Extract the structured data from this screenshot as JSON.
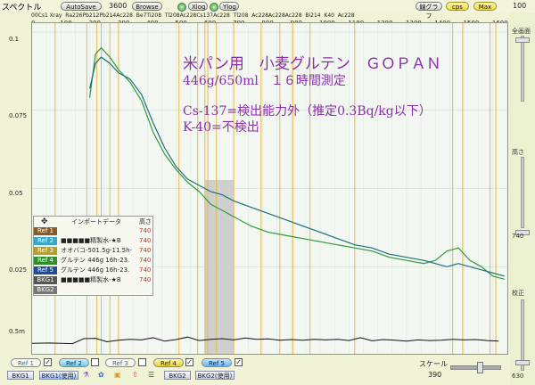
{
  "toolbar": {
    "title": "スペクトル",
    "autosave": "AutoSave",
    "time": "3600",
    "browse": "Browse",
    "xlog": "Xlog",
    "ylog": "Ylog",
    "line_graph": "線グラフ",
    "cps": "cps",
    "max": "Max",
    "right_top": "100"
  },
  "x_ticks": [
    "0",
    "100",
    "200",
    "300",
    "400",
    "500",
    "600",
    "700",
    "800",
    "900",
    "1000",
    "1100",
    "1200",
    "1300",
    "1400",
    "1500",
    "1600"
  ],
  "isotopes": "00Cs1 Xray  Ra226Pb212Pb214Ac228  Be7Ti208  Tl208Ac228Cs137Ac228  Tl208  Ac228Ac228Ac228  Bi214  K40  Ac228",
  "y_ticks": [
    "0.1",
    "0.075",
    "0.05",
    "0.025",
    "0.5m"
  ],
  "annotation": {
    "line1": "米パン用　小麦グルテン　ＧＯＰＡＮ",
    "line2": "446g/650ml　１６時間測定",
    "line3": "Cs-137=検出能力外（推定0.3Bq/kg以下）",
    "line4": "K-40=不検出"
  },
  "legend": {
    "header_name": "インポートデータ",
    "header_height": "高さ",
    "rows": [
      {
        "tag": "Ref 1",
        "text": "",
        "height": "740",
        "color": "#8b5a2b"
      },
      {
        "tag": "Ref 2",
        "text": "■■■■■精製水-★B",
        "height": "740",
        "color": "#3aa6c8"
      },
      {
        "tag": "Ref 3",
        "text": "オオバコ-501.5g-11.5h-",
        "height": "740",
        "color": "#b7a020"
      },
      {
        "tag": "Ref 4",
        "text": "グルテン 446g 16h-23.",
        "height": "740",
        "color": "#2f8f2f"
      },
      {
        "tag": "Ref 5",
        "text": "グルテン 446g 16h-23.",
        "height": "740",
        "color": "#1e4f9a"
      },
      {
        "tag": "BKG1",
        "text": "■■■■■精製水-★B",
        "height": "740",
        "color": "#555555"
      },
      {
        "tag": "BKG2",
        "text": "",
        "height": "",
        "color": "#777777"
      }
    ]
  },
  "right_panel": {
    "full_scale": "全画面",
    "height": "高さ",
    "height_value": "740",
    "calibration": "校正",
    "calibration_value": "630"
  },
  "bottom": {
    "ref1": "Ref 1",
    "ref2": "Ref 2",
    "ref3": "Ref 3",
    "ref4": "Ref 4",
    "ref5": "Ref 5",
    "bkg1": "BKG1",
    "bkg1_used": "BKG1(使用)",
    "bkg2": "BKG2",
    "bkg2_used": "BKG2(使用)",
    "scale_label": "スケール",
    "scale_value": "390"
  },
  "chart_data": {
    "type": "line",
    "xlim": [
      0,
      1650
    ],
    "ylim": [
      0,
      0.1
    ],
    "series": [
      {
        "name": "Ref 4",
        "color": "#2f9a3c",
        "x": [
          200,
          220,
          240,
          270,
          300,
          340,
          380,
          420,
          460,
          500,
          540,
          580,
          620,
          660,
          700,
          760,
          820,
          880,
          940,
          1000,
          1060,
          1120,
          1180,
          1240,
          1300,
          1360,
          1400,
          1440,
          1480,
          1520,
          1560,
          1600,
          1640
        ],
        "y": [
          0.079,
          0.093,
          0.095,
          0.092,
          0.088,
          0.084,
          0.078,
          0.068,
          0.061,
          0.056,
          0.052,
          0.049,
          0.045,
          0.043,
          0.041,
          0.038,
          0.036,
          0.035,
          0.034,
          0.033,
          0.032,
          0.031,
          0.03,
          0.028,
          0.027,
          0.026,
          0.027,
          0.03,
          0.031,
          0.027,
          0.025,
          0.022,
          0.021
        ]
      },
      {
        "name": "Ref 5",
        "color": "#1e6f7a",
        "x": [
          200,
          220,
          240,
          270,
          300,
          340,
          380,
          420,
          460,
          500,
          540,
          580,
          620,
          660,
          700,
          760,
          820,
          880,
          940,
          1000,
          1060,
          1120,
          1180,
          1240,
          1300,
          1360,
          1400,
          1440,
          1480,
          1520,
          1560,
          1600,
          1640
        ],
        "y": [
          0.082,
          0.09,
          0.092,
          0.09,
          0.087,
          0.085,
          0.08,
          0.071,
          0.063,
          0.057,
          0.053,
          0.051,
          0.049,
          0.048,
          0.046,
          0.044,
          0.042,
          0.04,
          0.038,
          0.036,
          0.034,
          0.032,
          0.031,
          0.029,
          0.028,
          0.027,
          0.026,
          0.025,
          0.026,
          0.025,
          0.024,
          0.023,
          0.022
        ]
      },
      {
        "name": "BKG1",
        "color": "#111111",
        "x": [
          0,
          60,
          100,
          140,
          180,
          220,
          260,
          300,
          340,
          380,
          420,
          460,
          500,
          540,
          580,
          620,
          660,
          700,
          740,
          780,
          820,
          860,
          900,
          940,
          980,
          1020,
          1060,
          1100,
          1140,
          1180,
          1220,
          1260,
          1300,
          1340,
          1380,
          1420,
          1460,
          1500,
          1540,
          1580,
          1620
        ],
        "y": [
          0.0005,
          0.0006,
          0.0005,
          0.0004,
          0.002,
          0.0021,
          0.001,
          0.0015,
          0.0018,
          0.0016,
          0.0023,
          0.0012,
          0.0017,
          0.0025,
          0.0014,
          0.0018,
          0.002,
          0.0016,
          0.0022,
          0.0018,
          0.0019,
          0.0015,
          0.0017,
          0.0015,
          0.0018,
          0.0016,
          0.0018,
          0.0014,
          0.0023,
          0.0013,
          0.0017,
          0.0015,
          0.0012,
          0.0016,
          0.0014,
          0.0015,
          0.0018,
          0.0016,
          0.0017,
          0.0014,
          0.0012
        ]
      }
    ]
  }
}
